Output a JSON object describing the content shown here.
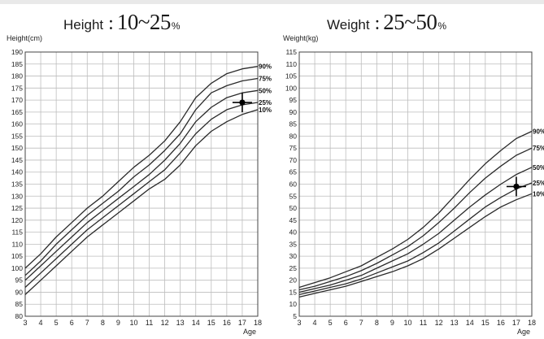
{
  "colors": {
    "grid": "#bdbdbd",
    "curve": "#2a2a2a",
    "marker": "#000000",
    "background": "#ffffff"
  },
  "chart_data": [
    {
      "type": "line",
      "title_name": "Height",
      "title_sep": ":",
      "title_range": "10~25",
      "title_unit": "%",
      "ylabel": "Height(cm)",
      "xlabel": "Age",
      "xlim": [
        3,
        18
      ],
      "ylim": [
        80,
        190
      ],
      "x_ticks": [
        3,
        4,
        5,
        6,
        7,
        8,
        9,
        10,
        11,
        12,
        13,
        14,
        15,
        16,
        17,
        18
      ],
      "y_ticks": [
        80,
        85,
        90,
        95,
        100,
        105,
        110,
        115,
        120,
        125,
        130,
        135,
        140,
        145,
        150,
        155,
        160,
        165,
        170,
        175,
        180,
        185,
        190
      ],
      "grid": true,
      "x": [
        3,
        4,
        5,
        6,
        7,
        8,
        9,
        10,
        11,
        12,
        13,
        14,
        15,
        16,
        17,
        18
      ],
      "series": [
        {
          "name": "10%",
          "values": [
            89,
            95,
            101,
            107,
            113,
            118,
            123,
            128,
            133,
            137,
            143,
            151,
            157,
            161,
            164,
            166
          ]
        },
        {
          "name": "25%",
          "values": [
            92,
            98,
            104,
            110,
            116,
            121,
            126,
            131,
            136,
            141,
            148,
            156,
            162,
            166,
            168,
            169
          ]
        },
        {
          "name": "50%",
          "values": [
            95,
            101,
            107,
            113,
            119,
            124,
            129,
            134,
            139,
            145,
            152,
            161,
            167,
            171,
            173,
            174
          ]
        },
        {
          "name": "75%",
          "values": [
            97,
            103,
            110,
            116,
            122,
            127,
            132,
            138,
            143,
            149,
            156,
            166,
            173,
            176,
            178,
            179
          ]
        },
        {
          "name": "90%",
          "values": [
            100,
            106,
            113,
            119,
            125,
            130,
            136,
            142,
            147,
            153,
            161,
            171,
            177,
            181,
            183,
            184
          ]
        }
      ],
      "marker": {
        "x": 17,
        "y": 169
      }
    },
    {
      "type": "line",
      "title_name": "Weight",
      "title_sep": ":",
      "title_range": "25~50",
      "title_unit": "%",
      "ylabel": "Weight(kg)",
      "xlabel": "Age",
      "xlim": [
        3,
        18
      ],
      "ylim": [
        5,
        115
      ],
      "x_ticks": [
        3,
        4,
        5,
        6,
        7,
        8,
        9,
        10,
        11,
        12,
        13,
        14,
        15,
        16,
        17,
        18
      ],
      "y_ticks": [
        5,
        10,
        15,
        20,
        25,
        30,
        35,
        40,
        45,
        50,
        55,
        60,
        65,
        70,
        75,
        80,
        85,
        90,
        95,
        100,
        105,
        110,
        115
      ],
      "grid": true,
      "x": [
        3,
        4,
        5,
        6,
        7,
        8,
        9,
        10,
        11,
        12,
        13,
        14,
        15,
        16,
        17,
        18
      ],
      "series": [
        {
          "name": "10%",
          "values": [
            13,
            14.5,
            16,
            17.5,
            19.5,
            21.5,
            23.5,
            26,
            29,
            33,
            37.5,
            42,
            46.5,
            50.5,
            53.5,
            56
          ]
        },
        {
          "name": "25%",
          "values": [
            14,
            15.5,
            17,
            18.5,
            20.5,
            23,
            25.5,
            28,
            31.5,
            35.5,
            40.5,
            45.5,
            50.5,
            54.5,
            58,
            60.5
          ]
        },
        {
          "name": "50%",
          "values": [
            15,
            16.5,
            18,
            20,
            22,
            25,
            28,
            31,
            35,
            39.5,
            45,
            50.5,
            55.5,
            60,
            64,
            67
          ]
        },
        {
          "name": "75%",
          "values": [
            16,
            17.5,
            19.5,
            21.5,
            24,
            27,
            30.5,
            34,
            38.5,
            44,
            50,
            56.5,
            62.5,
            67.5,
            72,
            75
          ]
        },
        {
          "name": "90%",
          "values": [
            17,
            19,
            21,
            23.5,
            26,
            29.5,
            33,
            37,
            42,
            48,
            55,
            62,
            68.5,
            74,
            79,
            82
          ]
        }
      ],
      "marker": {
        "x": 17,
        "y": 59
      }
    }
  ]
}
